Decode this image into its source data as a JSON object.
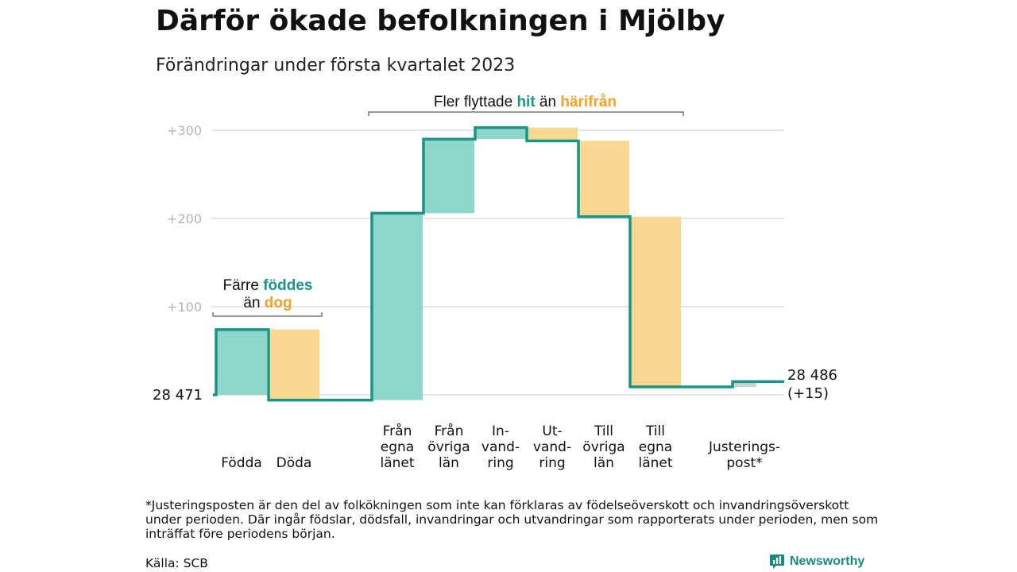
{
  "title": "Därför ökade befolkningen i Mjölby",
  "subtitle": "Förändringar under första kvartalet 2023",
  "colors": {
    "increase_line": "#1a9585",
    "increase_fill": "#8dd6cc",
    "decrease_fill": "#fbd891",
    "adjust_fill": "#c7d4d1",
    "grid": "#dddddd",
    "tick_text": "#b3b3b3",
    "teal_text": "#1a9585",
    "orange_text": "#f2a227"
  },
  "chart_data": {
    "type": "waterfall",
    "start_value": 28471,
    "start_label": "28 471",
    "end_label_line1": "28 486",
    "end_label_line2": "(+15)",
    "y_ticks": [
      {
        "value": 100,
        "label": "+100"
      },
      {
        "value": 200,
        "label": "+200"
      },
      {
        "value": 300,
        "label": "+300"
      }
    ],
    "grid": true,
    "steps": [
      {
        "label_lines": [
          "Födda"
        ],
        "change": 74,
        "kind": "increase"
      },
      {
        "label_lines": [
          "Döda"
        ],
        "change": -80,
        "kind": "decrease"
      },
      {
        "label_lines": [
          "Från",
          "egna",
          "länet"
        ],
        "change": 212,
        "kind": "increase"
      },
      {
        "label_lines": [
          "Från",
          "övriga",
          "län"
        ],
        "change": 84,
        "kind": "increase"
      },
      {
        "label_lines": [
          "In-",
          "vand-",
          "ring"
        ],
        "change": 13,
        "kind": "increase"
      },
      {
        "label_lines": [
          "Ut-",
          "vand-",
          "ring"
        ],
        "change": -15,
        "kind": "decrease"
      },
      {
        "label_lines": [
          "Till",
          "övriga",
          "län"
        ],
        "change": -86,
        "kind": "decrease"
      },
      {
        "label_lines": [
          "Till",
          "egna",
          "länet"
        ],
        "change": -193,
        "kind": "decrease"
      },
      {
        "label_lines": [
          "Justerings-",
          "post*"
        ],
        "change": 6,
        "kind": "adjustment"
      }
    ],
    "annotations": [
      {
        "id": "births",
        "line1": [
          {
            "text": "Färre "
          },
          {
            "text": "föddes",
            "color": "teal"
          }
        ],
        "line2": [
          {
            "text": "än "
          },
          {
            "text": "dog",
            "color": "orange"
          }
        ]
      },
      {
        "id": "migration",
        "line1": [
          {
            "text": "Fler flyttade "
          },
          {
            "text": "hit",
            "color": "teal"
          },
          {
            "text": " än "
          },
          {
            "text": "härifrån",
            "color": "orange"
          }
        ]
      }
    ]
  },
  "footnote": "*Justeringsposten är den del av folkökningen som inte kan förklaras av födelseöverskott och invandringsöverskott under perioden. Där ingår födslar, dödsfall, invandringar och utvandringar som rapporterats under perioden, men som inträffat före periodens början.",
  "source": "Källa: SCB",
  "brand": {
    "name": "Newsworthy",
    "icon": "newsworthy-logo-icon"
  }
}
